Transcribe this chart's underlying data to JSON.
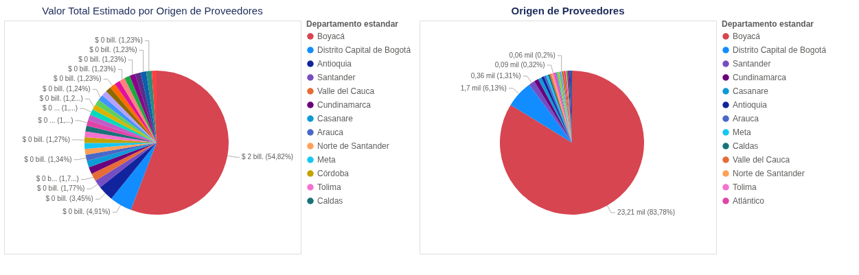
{
  "chart_data": [
    {
      "type": "pie",
      "title": "Valor Total Estimado por Origen de Proveedores",
      "legend_title": "Departamento estandar",
      "legend": "right",
      "categories": [
        "Boyacá",
        "Distrito Capital de Bogotá",
        "Antioquia",
        "Santander",
        "Valle del Cauca",
        "Cundinamarca",
        "Casanare",
        "Arauca",
        "Norte de Santander",
        "Meta",
        "Córdoba",
        "Tolima",
        "Caldas",
        null,
        null,
        null,
        null,
        null,
        null,
        null,
        null,
        null,
        null,
        null,
        null,
        null,
        null,
        null,
        null,
        null
      ],
      "values": [
        54.82,
        4.91,
        3.45,
        1.77,
        1.72,
        1.55,
        1.45,
        1.34,
        1.3,
        1.28,
        1.27,
        1.27,
        1.27,
        1.26,
        1.25,
        1.25,
        1.24,
        1.24,
        1.24,
        1.23,
        1.23,
        1.23,
        1.23,
        1.23,
        1.23,
        1.23,
        1.23,
        1.23,
        1.23,
        1.05
      ],
      "colors": [
        "#d64550",
        "#118dff",
        "#12239e",
        "#744ec2",
        "#e66c37",
        "#6b007b",
        "#0e9ad6",
        "#4a68c8",
        "#ffa058",
        "#15c6f4",
        "#c4a200",
        "#f472d0",
        "#197278",
        "#e044a7",
        "#be5dc9",
        "#00dbbc",
        "#d9b300",
        "#5ed05e",
        "#4092ff",
        "#b5a1ff",
        "#8c6a00",
        "#ff6a00",
        "#e0129b",
        "#ff8080",
        "#1aab40",
        "#8b008b",
        "#5a2d86",
        "#0b5fb0",
        "#2a8e7e",
        "#ff4040"
      ],
      "value_labels": [
        "$ 2 bill. (54,82%)",
        "$ 0 bill. (4,91%)",
        "$ 0 bill. (3,45%)",
        "$ 0 bill. (1,77%)",
        "$ 0 b... (1,7...)",
        null,
        null,
        "$ 0 bill. (1,34%)",
        null,
        null,
        "$ 0 bill. (1,27%)",
        null,
        null,
        "$ 0 ... (1,...)",
        null,
        "$ 0 ... (1,...)",
        "$ 0 bill. (1,2...)",
        null,
        "$ 0 bill. (1,24%)",
        null,
        null,
        "$ 0 bill. (1,23%)",
        null,
        "$ 0 bill. (1,23%)",
        null,
        "$ 0 bill. (1,23%)",
        null,
        "$ 0 bill. (1,23%)",
        "$ 0 bill. (1,23%)",
        null
      ]
    },
    {
      "type": "pie",
      "title": "Origen de Proveedores",
      "legend_title": "Departamento estandar",
      "legend": "right",
      "categories": [
        "Boyacá",
        "Distrito Capital de Bogotá",
        "Santander",
        "Cundinamarca",
        "Casanare",
        "Antioquia",
        "Arauca",
        "Meta",
        "Caldas",
        "Valle del Cauca",
        "Norte de Santander",
        "Tolima",
        "Atlántico",
        null,
        null,
        null,
        null,
        null,
        null,
        null,
        null,
        null,
        null,
        null,
        null,
        null,
        null
      ],
      "values": [
        83.78,
        6.13,
        1.31,
        1.0,
        0.8,
        0.6,
        0.5,
        0.45,
        0.4,
        0.35,
        0.33,
        0.32,
        0.3,
        0.28,
        0.26,
        0.26,
        0.26,
        0.25,
        0.2,
        0.26,
        0.26,
        0.25,
        0.25,
        0.25,
        0.25,
        0.35,
        0.35
      ],
      "colors": [
        "#d64550",
        "#118dff",
        "#744ec2",
        "#6b007b",
        "#0e9ad6",
        "#12239e",
        "#4a68c8",
        "#15c6f4",
        "#197278",
        "#e66c37",
        "#ffa058",
        "#f472d0",
        "#e044a7",
        "#be5dc9",
        "#00dbbc",
        "#d9b300",
        "#5ed05e",
        "#4092ff",
        "#b5a1ff",
        "#8c6a00",
        "#ff6a00",
        "#e0129b",
        "#ff8080",
        "#1aab40",
        "#8b008b",
        "#5a2d86",
        "#0b5fb0"
      ],
      "value_labels": [
        "23,21 mil (83,78%)",
        "1,7 mil (6,13%)",
        "0,36 mil (1,31%)",
        null,
        null,
        null,
        null,
        null,
        null,
        null,
        null,
        "0,09 mil (0,32%)",
        null,
        null,
        null,
        null,
        null,
        null,
        "0,06 mil (0,2%)",
        null,
        null,
        null,
        null,
        null,
        null,
        null,
        null
      ]
    }
  ]
}
